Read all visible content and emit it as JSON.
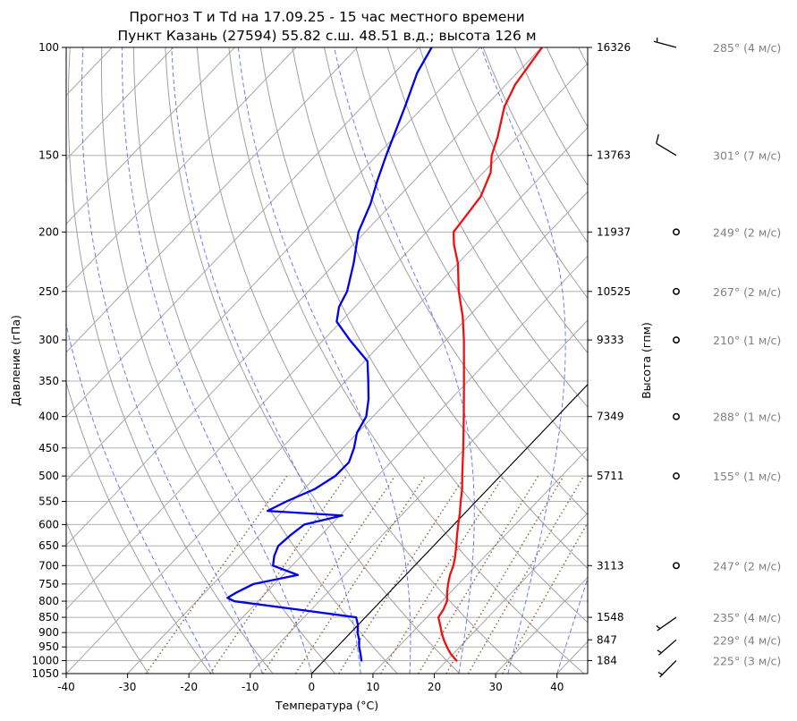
{
  "chart_data": {
    "type": "line",
    "title": "Прогноз T и Td на 17.09.25 - 15 час местного времени",
    "subtitle": "Пункт Казань (27594) 55.82 с.ш. 48.51 в.д.; высота 126 м",
    "xlabel": "Температура (°C)",
    "ylabel": "Давление (гПа)",
    "ylabel_right": "Высота (гпм)",
    "xlim": [
      -40,
      45
    ],
    "ylim": [
      1050,
      100
    ],
    "y_scale": "log",
    "x_ticks": [
      "-40",
      "-30",
      "-20",
      "-10",
      "0",
      "10",
      "20",
      "30",
      "40"
    ],
    "pressure_ticks": [
      "100",
      "150",
      "200",
      "250",
      "300",
      "350",
      "400",
      "450",
      "500",
      "550",
      "600",
      "650",
      "700",
      "750",
      "800",
      "850",
      "900",
      "950",
      "1000",
      "1050"
    ],
    "heights": [
      {
        "p": 100,
        "label": "16326"
      },
      {
        "p": 150,
        "label": "13763"
      },
      {
        "p": 200,
        "label": "11937"
      },
      {
        "p": 250,
        "label": "10525"
      },
      {
        "p": 300,
        "label": "9333"
      },
      {
        "p": 400,
        "label": "7349"
      },
      {
        "p": 500,
        "label": "5711"
      },
      {
        "p": 700,
        "label": "3113"
      },
      {
        "p": 850,
        "label": "1548"
      },
      {
        "p": 925,
        "label": "847"
      },
      {
        "p": 1000,
        "label": "184"
      }
    ],
    "grid": true,
    "series": [
      {
        "key": "temperature",
        "color": "#ee1111",
        "points": [
          [
            1000,
            21.6
          ],
          [
            975,
            19.6
          ],
          [
            950,
            17.9
          ],
          [
            925,
            16.3
          ],
          [
            900,
            14.8
          ],
          [
            875,
            13.4
          ],
          [
            850,
            11.9
          ],
          [
            825,
            11.5
          ],
          [
            800,
            10.8
          ],
          [
            775,
            9.5
          ],
          [
            750,
            8.3
          ],
          [
            725,
            7.2
          ],
          [
            700,
            6.3
          ],
          [
            675,
            5.1
          ],
          [
            650,
            3.7
          ],
          [
            625,
            2.2
          ],
          [
            600,
            0.7
          ],
          [
            575,
            -0.8
          ],
          [
            550,
            -2.5
          ],
          [
            525,
            -4.2
          ],
          [
            500,
            -6.2
          ],
          [
            450,
            -10.4
          ],
          [
            400,
            -15.2
          ],
          [
            350,
            -20.7
          ],
          [
            300,
            -27.1
          ],
          [
            275,
            -30.9
          ],
          [
            250,
            -35.5
          ],
          [
            225,
            -40.0
          ],
          [
            210,
            -43.5
          ],
          [
            200,
            -45.6
          ],
          [
            190,
            -46.0
          ],
          [
            175,
            -46.7
          ],
          [
            160,
            -48.8
          ],
          [
            150,
            -51.3
          ],
          [
            140,
            -53.2
          ],
          [
            125,
            -56.8
          ],
          [
            115,
            -58.5
          ],
          [
            100,
            -59.9
          ]
        ]
      },
      {
        "key": "dewpoint",
        "color": "#0000ee",
        "points": [
          [
            1000,
            6.1
          ],
          [
            975,
            4.9
          ],
          [
            950,
            3.6
          ],
          [
            925,
            2.5
          ],
          [
            900,
            1.1
          ],
          [
            875,
            0.0
          ],
          [
            850,
            -1.5
          ],
          [
            825,
            -12.4
          ],
          [
            800,
            -23.9
          ],
          [
            790,
            -25.5
          ],
          [
            775,
            -24.9
          ],
          [
            750,
            -23.4
          ],
          [
            725,
            -17.6
          ],
          [
            700,
            -23.1
          ],
          [
            675,
            -24.4
          ],
          [
            650,
            -25.3
          ],
          [
            625,
            -25.0
          ],
          [
            600,
            -24.4
          ],
          [
            580,
            -19.6
          ],
          [
            570,
            -32.5
          ],
          [
            550,
            -30.9
          ],
          [
            525,
            -28.2
          ],
          [
            500,
            -26.9
          ],
          [
            475,
            -26.8
          ],
          [
            450,
            -28.2
          ],
          [
            425,
            -30.1
          ],
          [
            400,
            -31.1
          ],
          [
            375,
            -33.4
          ],
          [
            350,
            -36.3
          ],
          [
            325,
            -39.5
          ],
          [
            300,
            -45.7
          ],
          [
            280,
            -50.7
          ],
          [
            265,
            -52.6
          ],
          [
            250,
            -53.7
          ],
          [
            225,
            -57.0
          ],
          [
            200,
            -61.1
          ],
          [
            180,
            -63.5
          ],
          [
            165,
            -66.0
          ],
          [
            150,
            -68.5
          ],
          [
            125,
            -73.0
          ],
          [
            110,
            -76.3
          ],
          [
            100,
            -77.9
          ]
        ]
      }
    ],
    "winds": [
      {
        "p": 100,
        "dir": 285,
        "speed": 4,
        "label": "285° (4 м/с)"
      },
      {
        "p": 150,
        "dir": 301,
        "speed": 7,
        "label": "301° (7 м/с)"
      },
      {
        "p": 200,
        "dir": 249,
        "speed": 2,
        "label": "249° (2 м/с)"
      },
      {
        "p": 250,
        "dir": 267,
        "speed": 2,
        "label": "267° (2 м/с)"
      },
      {
        "p": 300,
        "dir": 210,
        "speed": 1,
        "label": "210° (1 м/с)"
      },
      {
        "p": 400,
        "dir": 288,
        "speed": 1,
        "label": "288° (1 м/с)"
      },
      {
        "p": 500,
        "dir": 155,
        "speed": 1,
        "label": "155° (1 м/с)"
      },
      {
        "p": 700,
        "dir": 247,
        "speed": 2,
        "label": "247° (2 м/с)"
      },
      {
        "p": 850,
        "dir": 235,
        "speed": 4,
        "label": "235° (4 м/с)"
      },
      {
        "p": 925,
        "dir": 229,
        "speed": 4,
        "label": "229° (4 м/с)"
      },
      {
        "p": 1000,
        "dir": 225,
        "speed": 3,
        "label": "225° (3 м/с)"
      }
    ]
  }
}
